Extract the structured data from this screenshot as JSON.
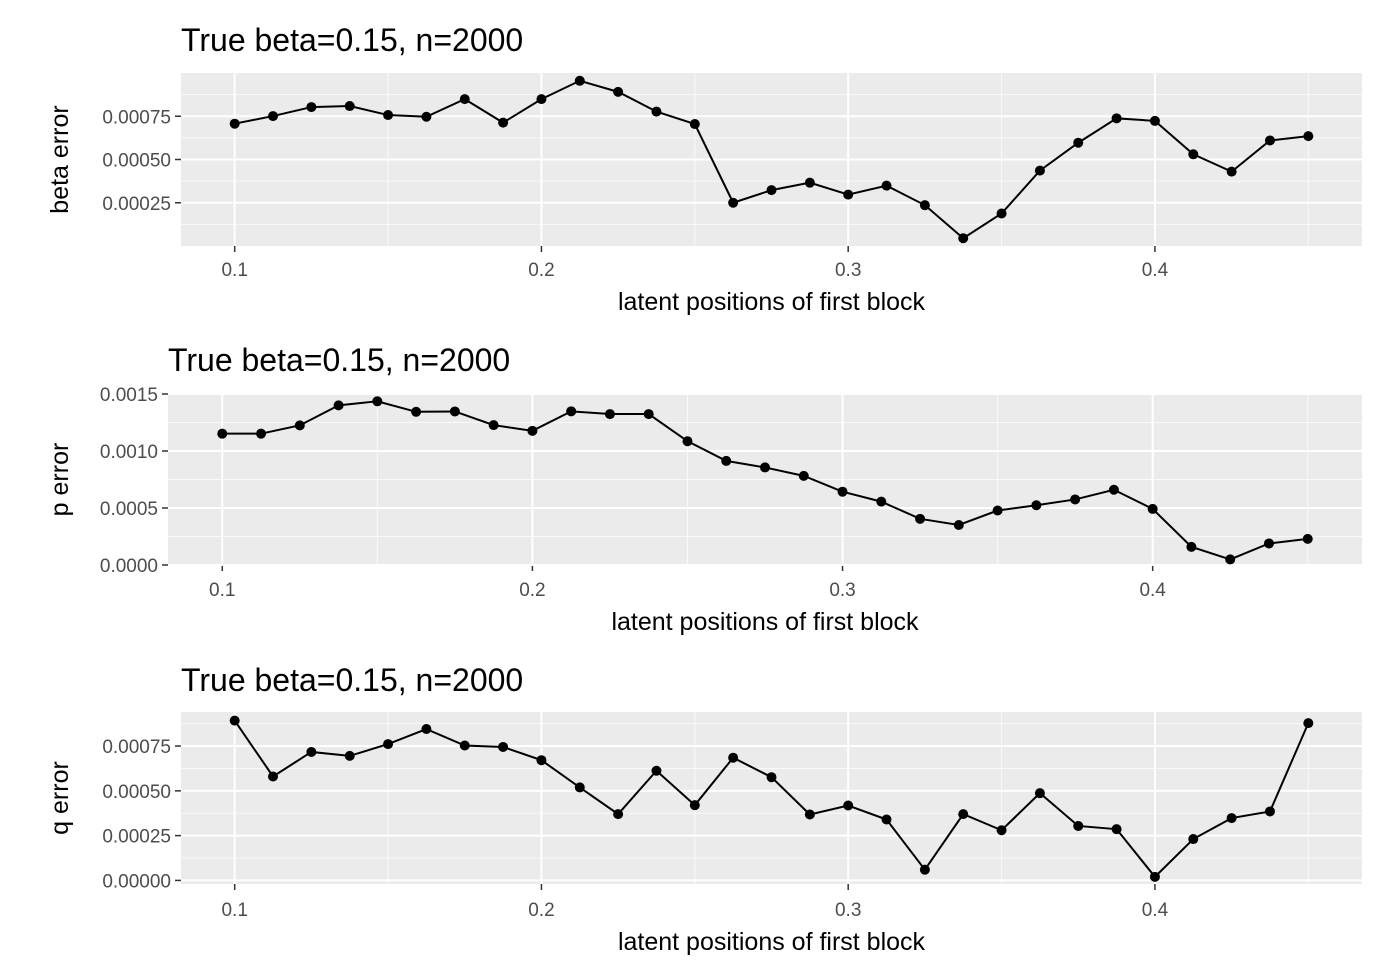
{
  "chart_data": [
    {
      "type": "line",
      "title": "True beta=0.15, n=2000",
      "xlabel": "latent positions of first block",
      "ylabel": "beta error",
      "xlim": [
        0.0825,
        0.4675
      ],
      "ylim": [
        0.0,
        0.001
      ],
      "xticks": [
        0.1,
        0.2,
        0.3,
        0.4
      ],
      "xtick_labels": [
        "0.1",
        "0.2",
        "0.3",
        "0.4"
      ],
      "yticks": [
        0.00025,
        0.0005,
        0.00075
      ],
      "ytick_labels": [
        "0.00025",
        "0.00050",
        "0.00075"
      ],
      "grid": true,
      "x": [
        0.1,
        0.1125,
        0.125,
        0.1375,
        0.15,
        0.1625,
        0.175,
        0.1875,
        0.2,
        0.2125,
        0.225,
        0.2375,
        0.25,
        0.2625,
        0.275,
        0.2875,
        0.3,
        0.3125,
        0.325,
        0.3375,
        0.35,
        0.3625,
        0.375,
        0.3875,
        0.4,
        0.4125,
        0.425,
        0.4375,
        0.45
      ],
      "series": [
        {
          "values": [
            0.000707,
            0.000751,
            0.000803,
            0.000809,
            0.000757,
            0.000747,
            0.000849,
            0.000713,
            0.000849,
            0.000955,
            0.000891,
            0.000777,
            0.000705,
            0.00025,
            0.000323,
            0.000366,
            0.000297,
            0.000349,
            0.000236,
            4.5e-05,
            0.000188,
            0.000436,
            0.000597,
            0.000738,
            0.000723,
            0.00053,
            0.00043,
            0.00061,
            0.000635
          ]
        }
      ]
    },
    {
      "type": "line",
      "title": "True beta=0.15, n=2000",
      "xlabel": "latent positions of first block",
      "ylabel": "p error",
      "xlim": [
        0.0825,
        0.4675
      ],
      "ylim": [
        0.0,
        0.0015
      ],
      "xticks": [
        0.1,
        0.2,
        0.3,
        0.4
      ],
      "xtick_labels": [
        "0.1",
        "0.2",
        "0.3",
        "0.4"
      ],
      "yticks": [
        0.0,
        0.0005,
        0.001,
        0.0015
      ],
      "ytick_labels": [
        "0.0000",
        "0.0005",
        "0.0010",
        "0.0015"
      ],
      "grid": true,
      "x": [
        0.1,
        0.1125,
        0.125,
        0.1375,
        0.15,
        0.1625,
        0.175,
        0.1875,
        0.2,
        0.2125,
        0.225,
        0.2375,
        0.25,
        0.2625,
        0.275,
        0.2875,
        0.3,
        0.3125,
        0.325,
        0.3375,
        0.35,
        0.3625,
        0.375,
        0.3875,
        0.4,
        0.4125,
        0.425,
        0.4375,
        0.45
      ],
      "series": [
        {
          "values": [
            0.001152,
            0.001152,
            0.001225,
            0.0014,
            0.001436,
            0.001344,
            0.001347,
            0.001227,
            0.001177,
            0.001348,
            0.001324,
            0.001324,
            0.001086,
            0.000913,
            0.000856,
            0.000782,
            0.000643,
            0.000556,
            0.000405,
            0.000351,
            0.000478,
            0.000524,
            0.000575,
            0.00066,
            0.000492,
            0.000159,
            4.9e-05,
            0.000189,
            0.000229
          ]
        }
      ]
    },
    {
      "type": "line",
      "title": "True beta=0.15, n=2000",
      "xlabel": "latent positions of first block",
      "ylabel": "q error",
      "xlim": [
        0.0825,
        0.4675
      ],
      "ylim": [
        -2e-05,
        0.00094
      ],
      "xticks": [
        0.1,
        0.2,
        0.3,
        0.4
      ],
      "xtick_labels": [
        "0.1",
        "0.2",
        "0.3",
        "0.4"
      ],
      "yticks": [
        0.0,
        0.00025,
        0.0005,
        0.00075
      ],
      "ytick_labels": [
        "0.00000",
        "0.00025",
        "0.00050",
        "0.00075"
      ],
      "grid": true,
      "x": [
        0.1,
        0.1125,
        0.125,
        0.1375,
        0.15,
        0.1625,
        0.175,
        0.1875,
        0.2,
        0.2125,
        0.225,
        0.2375,
        0.25,
        0.2625,
        0.275,
        0.2875,
        0.3,
        0.3125,
        0.325,
        0.3375,
        0.35,
        0.3625,
        0.375,
        0.3875,
        0.4,
        0.4125,
        0.425,
        0.4375,
        0.45
      ],
      "series": [
        {
          "values": [
            0.000892,
            0.00058,
            0.000717,
            0.000695,
            0.000761,
            0.000845,
            0.000753,
            0.000745,
            0.000671,
            0.000519,
            0.00037,
            0.000612,
            0.00042,
            0.000685,
            0.000576,
            0.000368,
            0.000418,
            0.00034,
            6e-05,
            0.00037,
            0.00028,
            0.000487,
            0.000304,
            0.000286,
            2e-05,
            0.000231,
            0.000348,
            0.000385,
            0.000878
          ]
        }
      ]
    }
  ]
}
